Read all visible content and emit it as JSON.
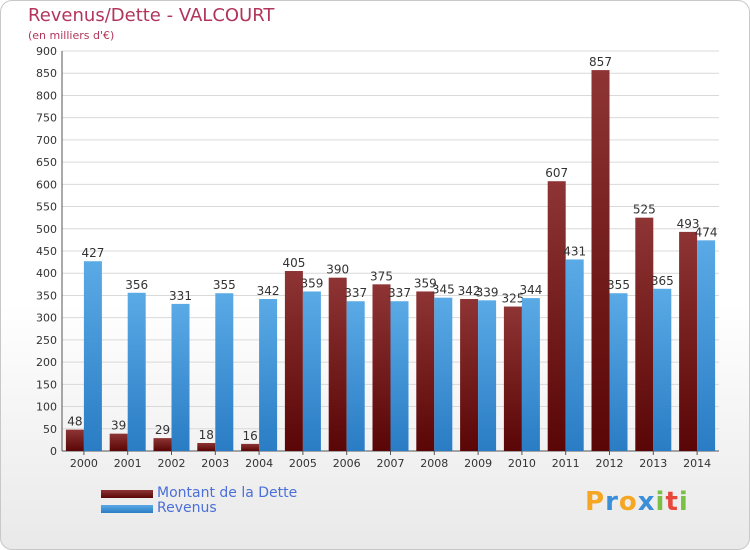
{
  "header": {
    "title": "Revenus/Dette - VALCOURT",
    "subtitle": "(en milliers d'€)"
  },
  "colors": {
    "title": "#b1355c",
    "debt": "#7a1414",
    "revenue": "#3a8fd8",
    "legend_text": "#4a6fd8"
  },
  "chart_data": {
    "type": "bar",
    "categories": [
      "2000",
      "2001",
      "2002",
      "2003",
      "2004",
      "2005",
      "2006",
      "2007",
      "2008",
      "2009",
      "2010",
      "2011",
      "2012",
      "2013",
      "2014"
    ],
    "series": [
      {
        "name": "Montant de la Dette",
        "color": "#7a1414",
        "values": [
          48,
          39,
          29,
          18,
          16,
          405,
          390,
          375,
          359,
          342,
          325,
          607,
          857,
          525,
          493
        ]
      },
      {
        "name": "Revenus",
        "color": "#3a8fd8",
        "values": [
          427,
          356,
          331,
          355,
          342,
          359,
          337,
          337,
          345,
          339,
          344,
          431,
          355,
          365,
          474
        ]
      }
    ],
    "ylim": [
      0,
      900
    ],
    "ytick_step": 50,
    "yticks": [
      "0",
      "50",
      "100",
      "150",
      "200",
      "250",
      "300",
      "350",
      "400",
      "450",
      "500",
      "550",
      "600",
      "650",
      "700",
      "750",
      "800",
      "850",
      "900"
    ],
    "grid": true,
    "legend_position": "bottom-left"
  },
  "logo": {
    "letters": [
      "P",
      "r",
      "o",
      "x",
      "i",
      "t",
      "i"
    ],
    "colors": [
      "#f5a623",
      "#3a8fd8",
      "#f5a623",
      "#3a8fd8",
      "#7ac143",
      "#e8473b",
      "#7ac143"
    ]
  }
}
